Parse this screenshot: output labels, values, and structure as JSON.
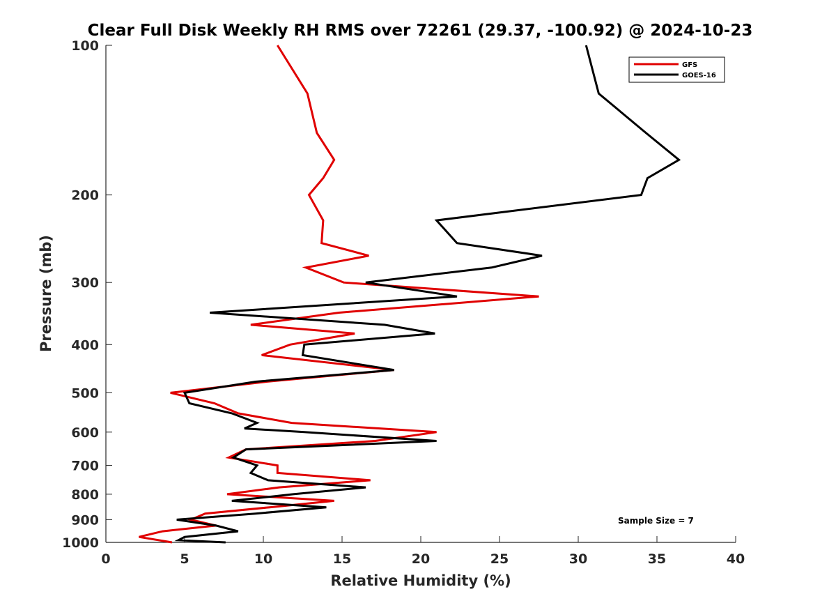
{
  "chart_data": {
    "type": "line",
    "title": "Clear Full Disk Weekly RH RMS over 72261 (29.37, -100.92) @ 2024-10-23",
    "xlabel": "Relative Humidity (%)",
    "ylabel": "Pressure (mb)",
    "xlim": [
      0,
      40
    ],
    "ylim": [
      100,
      1000
    ],
    "yscale": "log",
    "y_reversed": true,
    "xticks": [
      0,
      5,
      10,
      15,
      20,
      25,
      30,
      35,
      40
    ],
    "yticks": [
      100,
      200,
      300,
      400,
      500,
      600,
      700,
      800,
      900,
      1000
    ],
    "grid": false,
    "legend_position": "top-right",
    "annotation": "Sample Size = 7",
    "series": [
      {
        "name": "GFS",
        "color": "#e00000",
        "points": [
          [
            10.9,
            100
          ],
          [
            12.8,
            125
          ],
          [
            13.4,
            150
          ],
          [
            14.5,
            170
          ],
          [
            13.8,
            185
          ],
          [
            12.9,
            200
          ],
          [
            13.8,
            225
          ],
          [
            13.7,
            250
          ],
          [
            16.7,
            265
          ],
          [
            12.7,
            280
          ],
          [
            15.1,
            300
          ],
          [
            27.5,
            320
          ],
          [
            14.8,
            345
          ],
          [
            9.2,
            365
          ],
          [
            15.8,
            380
          ],
          [
            11.7,
            400
          ],
          [
            9.9,
            420
          ],
          [
            18.3,
            450
          ],
          [
            10.2,
            475
          ],
          [
            4.1,
            500
          ],
          [
            6.9,
            525
          ],
          [
            8.4,
            550
          ],
          [
            11.8,
            575
          ],
          [
            21.0,
            600
          ],
          [
            17.1,
            625
          ],
          [
            8.9,
            650
          ],
          [
            7.8,
            675
          ],
          [
            10.9,
            700
          ],
          [
            10.9,
            725
          ],
          [
            16.8,
            750
          ],
          [
            11.0,
            775
          ],
          [
            7.7,
            800
          ],
          [
            14.5,
            825
          ],
          [
            10.4,
            850
          ],
          [
            6.3,
            875
          ],
          [
            5.4,
            900
          ],
          [
            7.0,
            925
          ],
          [
            3.6,
            950
          ],
          [
            2.1,
            975
          ],
          [
            4.2,
            1000
          ]
        ]
      },
      {
        "name": "GOES-16",
        "color": "#000000",
        "points": [
          [
            30.5,
            100
          ],
          [
            31.3,
            125
          ],
          [
            34.3,
            150
          ],
          [
            36.4,
            170
          ],
          [
            34.4,
            185
          ],
          [
            34.0,
            200
          ],
          [
            21.0,
            225
          ],
          [
            22.3,
            250
          ],
          [
            27.7,
            265
          ],
          [
            24.5,
            280
          ],
          [
            16.5,
            300
          ],
          [
            22.3,
            320
          ],
          [
            6.6,
            345
          ],
          [
            17.7,
            365
          ],
          [
            20.9,
            380
          ],
          [
            12.6,
            400
          ],
          [
            12.5,
            420
          ],
          [
            18.3,
            450
          ],
          [
            9.5,
            475
          ],
          [
            5.0,
            500
          ],
          [
            5.3,
            525
          ],
          [
            8.0,
            550
          ],
          [
            9.6,
            575
          ],
          [
            8.8,
            590
          ],
          [
            12.6,
            600
          ],
          [
            21.0,
            625
          ],
          [
            8.9,
            650
          ],
          [
            8.1,
            675
          ],
          [
            9.6,
            700
          ],
          [
            9.2,
            725
          ],
          [
            10.3,
            750
          ],
          [
            16.5,
            775
          ],
          [
            11.9,
            800
          ],
          [
            8.0,
            825
          ],
          [
            14.0,
            850
          ],
          [
            9.5,
            875
          ],
          [
            4.5,
            900
          ],
          [
            7.0,
            925
          ],
          [
            8.4,
            950
          ],
          [
            5.0,
            975
          ],
          [
            4.6,
            990
          ],
          [
            7.6,
            1000
          ]
        ]
      }
    ]
  }
}
